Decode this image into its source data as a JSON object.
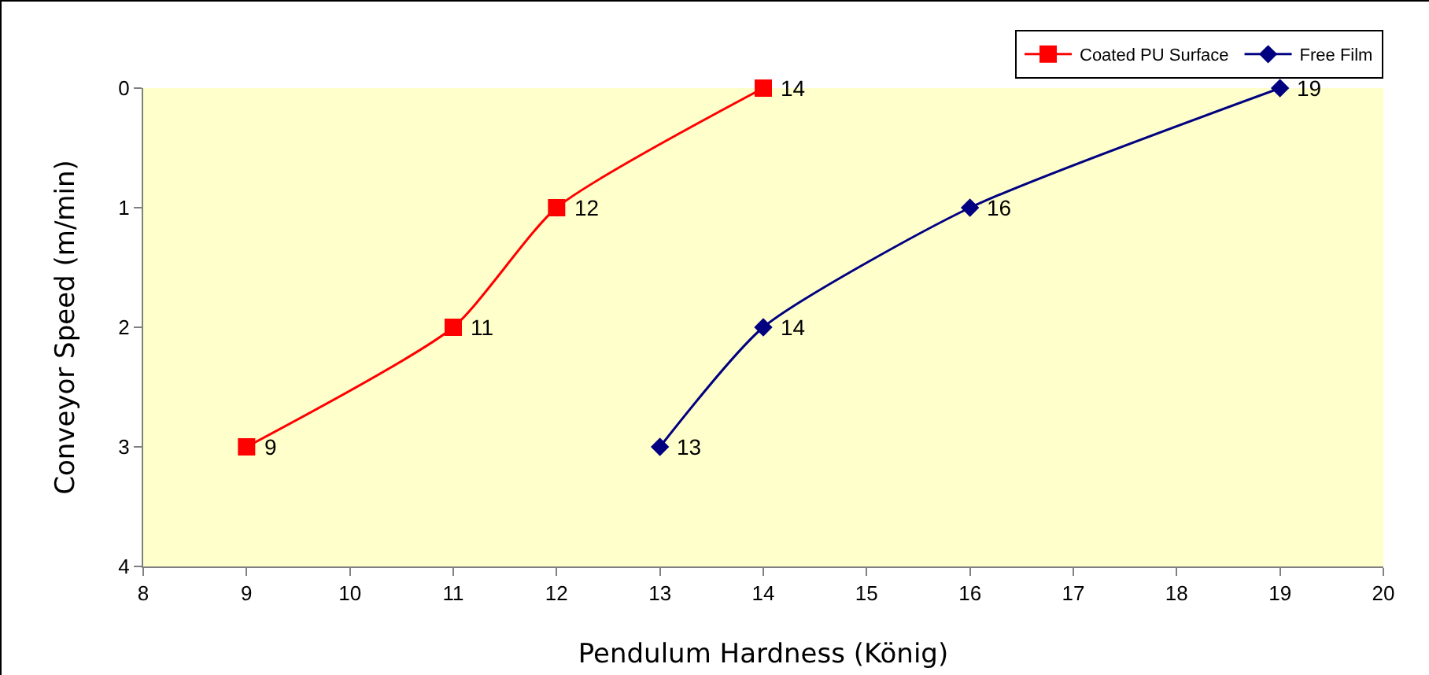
{
  "chart_data": {
    "type": "line",
    "xlabel": "Pendulum Hardness (König)",
    "ylabel": "Conveyor Speed (m/min)",
    "xlim": [
      8,
      20
    ],
    "xticks": [
      8,
      9,
      10,
      11,
      12,
      13,
      14,
      15,
      16,
      17,
      18,
      19,
      20
    ],
    "ylim": [
      4,
      0
    ],
    "yticks": [
      0,
      1,
      2,
      3,
      4
    ],
    "grid": false,
    "legend": "top right",
    "series": [
      {
        "name": "Coated PU Surface",
        "color": "#ff0000",
        "marker": "square",
        "x": [
          9,
          11,
          12,
          14
        ],
        "values": [
          3,
          2,
          1,
          0
        ]
      },
      {
        "name": "Free Film",
        "color": "#000080",
        "marker": "diamond",
        "x": [
          13,
          14,
          16,
          19
        ],
        "values": [
          3,
          2,
          1,
          0
        ]
      }
    ],
    "annotations": [
      {
        "text": "9",
        "x": 9,
        "y": 3
      },
      {
        "text": "11",
        "x": 11,
        "y": 2
      },
      {
        "text": "12",
        "x": 12,
        "y": 1
      },
      {
        "text": "14",
        "x": 14,
        "y": 0
      },
      {
        "text": "13",
        "x": 13,
        "y": 3
      },
      {
        "text": "14",
        "x": 14,
        "y": 2
      },
      {
        "text": "16",
        "x": 16,
        "y": 1
      },
      {
        "text": "19",
        "x": 19,
        "y": 0
      }
    ]
  }
}
